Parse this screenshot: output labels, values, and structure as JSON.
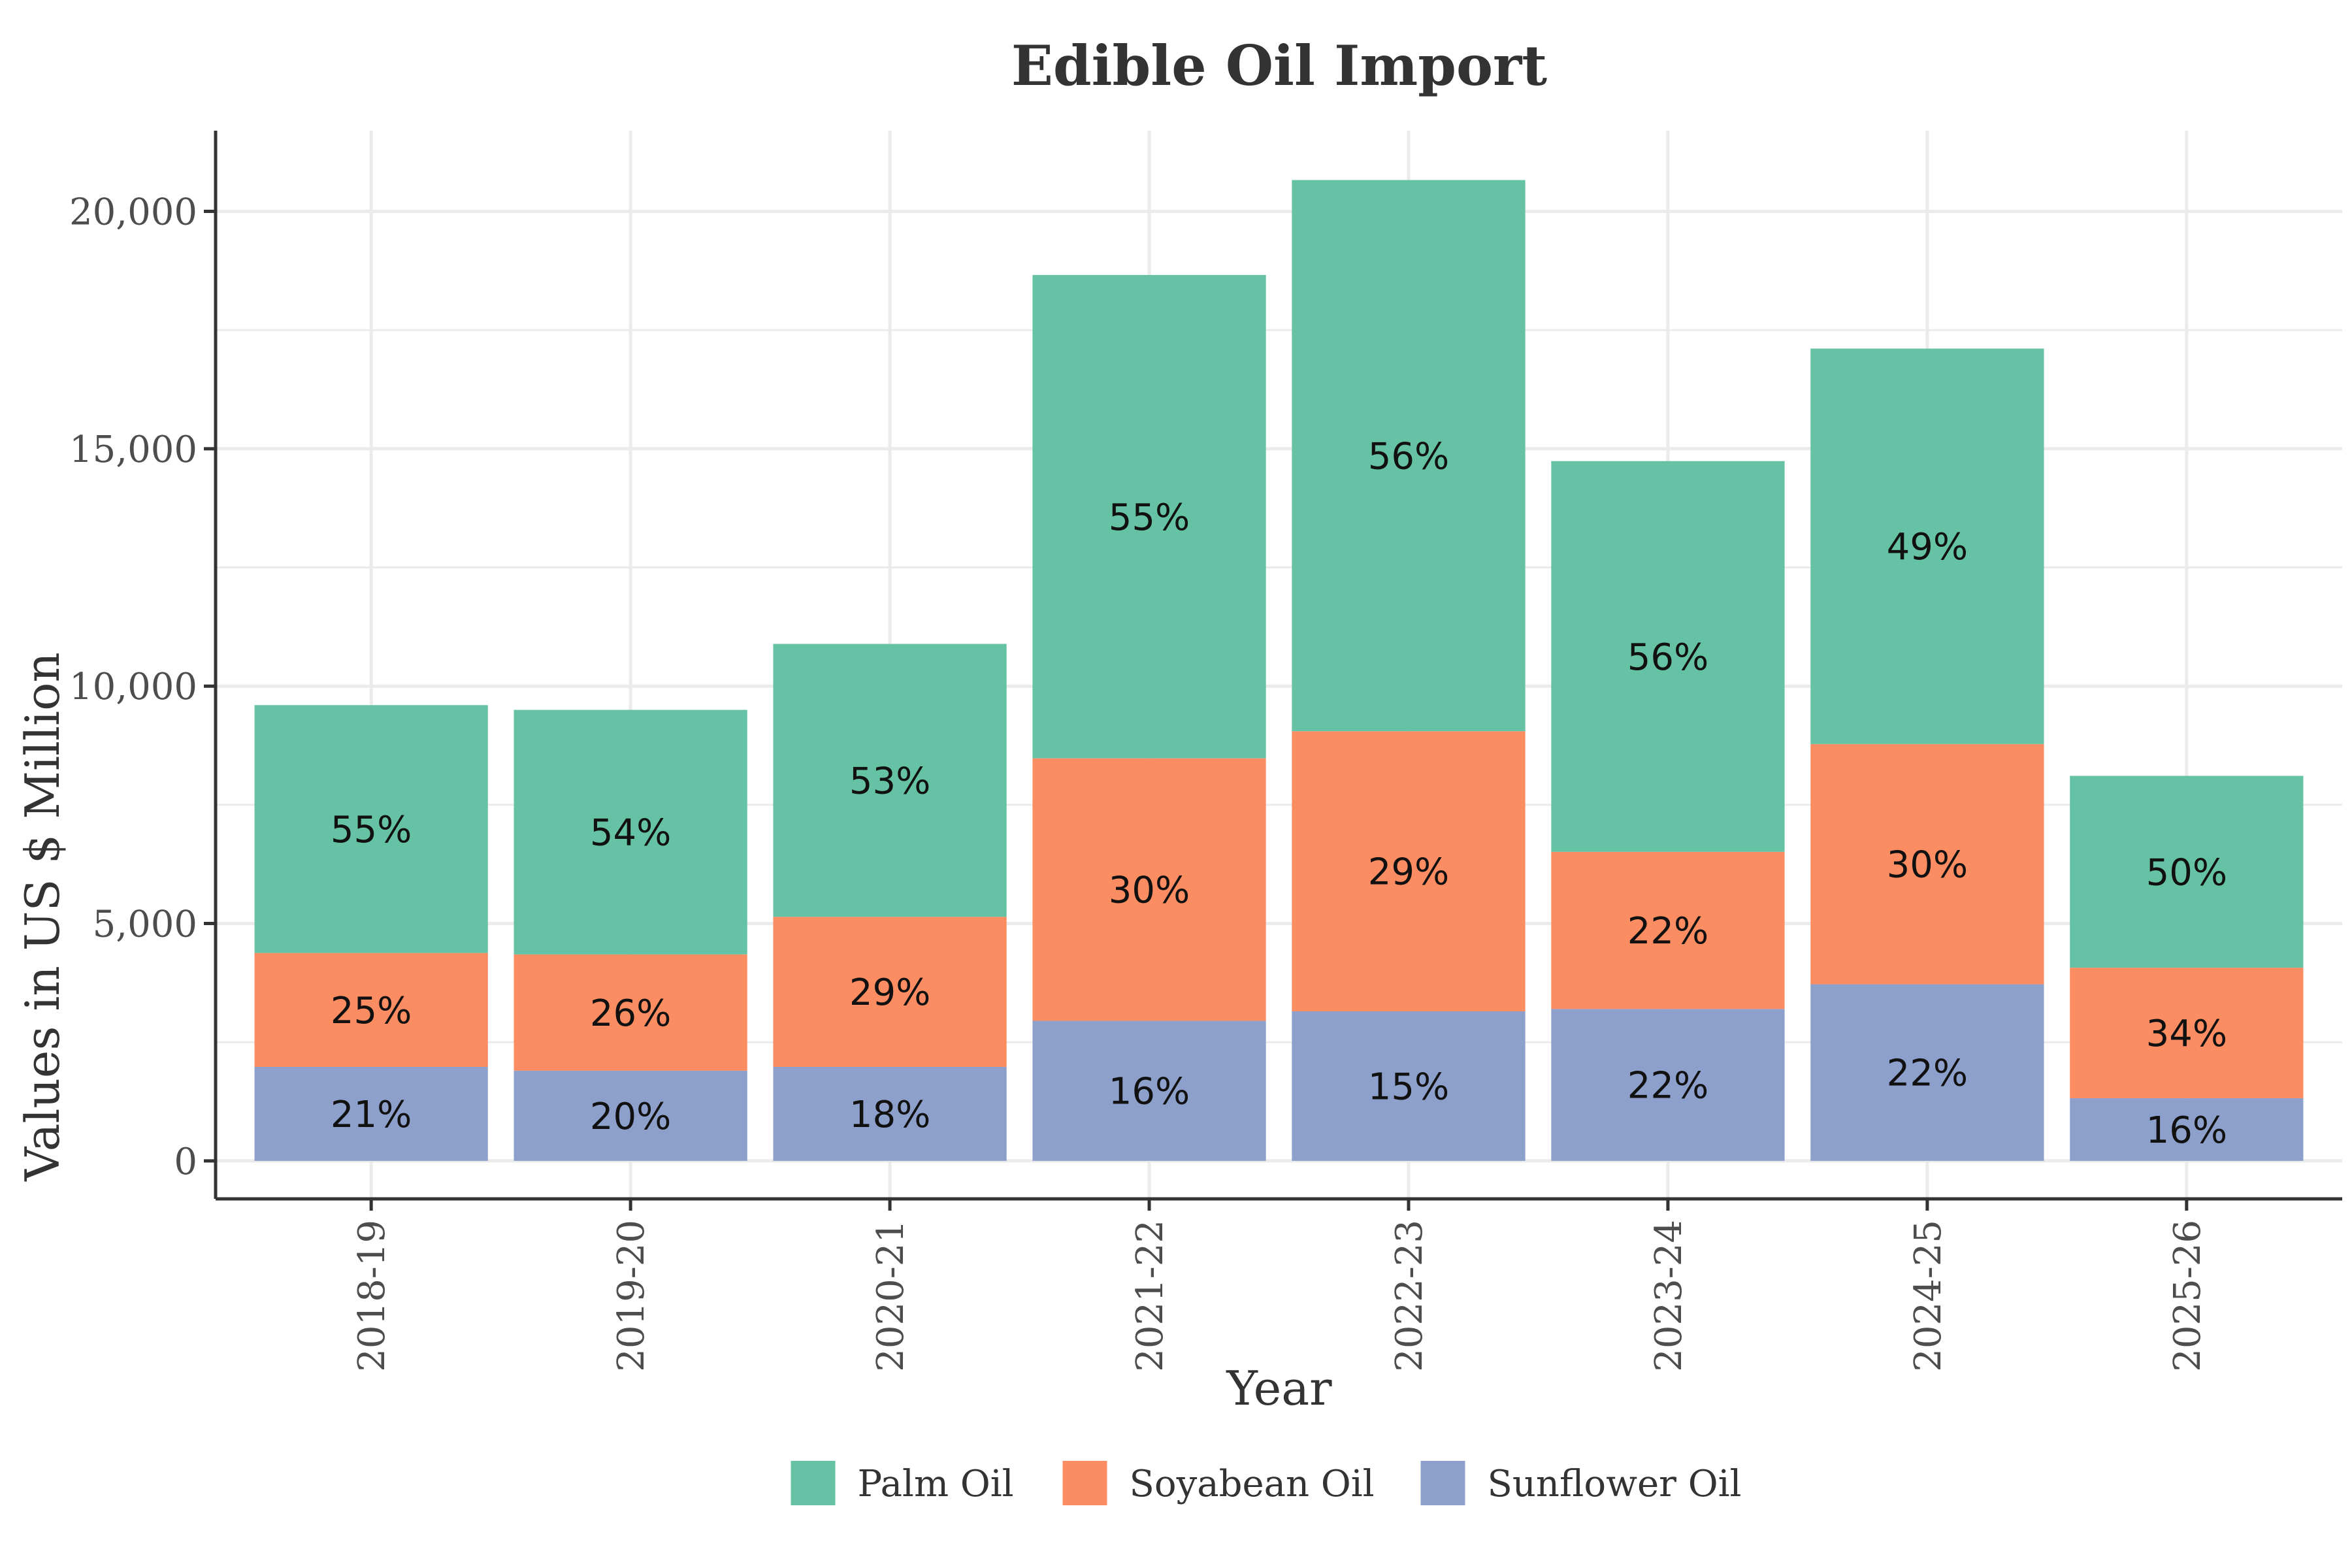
{
  "chart_data": {
    "type": "bar",
    "stacked": true,
    "title": "Edible Oil Import",
    "xlabel": "Year",
    "ylabel": "Values in US $ Million",
    "categories": [
      "2018-19",
      "2019-20",
      "2020-21",
      "2021-22",
      "2022-23",
      "2023-24",
      "2024-25",
      "2025-26"
    ],
    "ylim": [
      -800,
      21700
    ],
    "yticks": [
      0,
      5000,
      10000,
      15000,
      20000
    ],
    "ytick_labels": [
      "0",
      "5,000",
      "10,000",
      "15,000",
      "20,000"
    ],
    "grid": true,
    "legend_position": "bottom",
    "series": [
      {
        "name": "Sunflower Oil",
        "color": "#8da0cb",
        "values": [
          1980,
          1900,
          1980,
          2950,
          3150,
          3200,
          3720,
          1320
        ],
        "labels": [
          "21%",
          "20%",
          "18%",
          "16%",
          "15%",
          "22%",
          "22%",
          "16%"
        ]
      },
      {
        "name": "Soyabean Oil",
        "color": "#fc8d62",
        "values": [
          2400,
          2450,
          3160,
          5530,
          5900,
          3310,
          5060,
          2750
        ],
        "labels": [
          "25%",
          "26%",
          "29%",
          "30%",
          "29%",
          "22%",
          "30%",
          "34%"
        ]
      },
      {
        "name": "Palm Oil",
        "color": "#66c2a5",
        "values": [
          5220,
          5150,
          5750,
          10180,
          11610,
          8230,
          8330,
          4040
        ],
        "labels": [
          "55%",
          "54%",
          "53%",
          "55%",
          "56%",
          "56%",
          "49%",
          "50%"
        ]
      }
    ],
    "legend_order": [
      "Palm Oil",
      "Soyabean Oil",
      "Sunflower Oil"
    ]
  }
}
